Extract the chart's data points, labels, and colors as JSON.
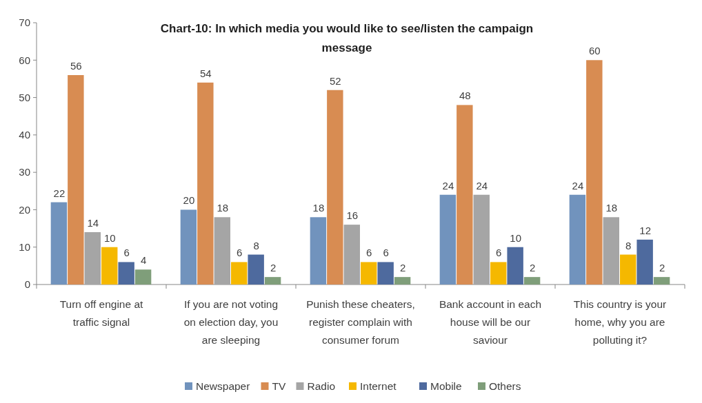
{
  "chart_data": {
    "type": "bar",
    "title": "Chart-10: In which media you would like to see/listen the campaign message",
    "categories": [
      "Turn off engine at traffic signal",
      "If you are not voting on election day, you are sleeping",
      "Punish these cheaters, register complain with consumer forum",
      "Bank account in each house will be our saviour",
      "This country is your home, why you are polluting it?"
    ],
    "series": [
      {
        "name": "Newspaper",
        "color": "#7193bd",
        "values": [
          22,
          20,
          18,
          24,
          24
        ]
      },
      {
        "name": "TV",
        "color": "#d88c52",
        "values": [
          56,
          54,
          52,
          48,
          60
        ]
      },
      {
        "name": "Radio",
        "color": "#a5a5a5",
        "values": [
          14,
          18,
          16,
          24,
          18
        ]
      },
      {
        "name": "Internet",
        "color": "#f5b800",
        "values": [
          10,
          6,
          6,
          6,
          8
        ]
      },
      {
        "name": "Mobile",
        "color": "#4e6a9e",
        "values": [
          6,
          8,
          6,
          10,
          12
        ]
      },
      {
        "name": "Others",
        "color": "#7f9e7a",
        "values": [
          4,
          2,
          2,
          2,
          2
        ]
      }
    ],
    "ylim": [
      0,
      70
    ],
    "yticks": [
      0,
      10,
      20,
      30,
      40,
      50,
      60,
      70
    ],
    "grid": false,
    "legend": "bottom",
    "data_labels": true
  }
}
